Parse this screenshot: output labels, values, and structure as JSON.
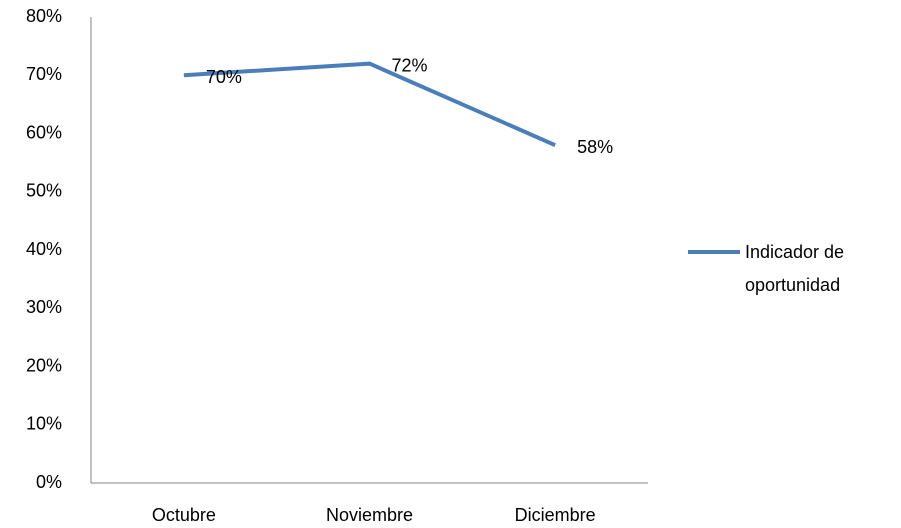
{
  "chart_data": {
    "type": "line",
    "categories": [
      "Octubre",
      "Noviembre",
      "Diciembre"
    ],
    "series": [
      {
        "name": "Indicador de oportunidad",
        "color": "#4a7ebb",
        "values": [
          70,
          72,
          58
        ],
        "value_labels": [
          "70%",
          "72%",
          "58%"
        ]
      }
    ],
    "ylim": [
      0,
      80
    ],
    "yticks": [
      {
        "value": 0,
        "label": "0%"
      },
      {
        "value": 10,
        "label": "10%"
      },
      {
        "value": 20,
        "label": "20%"
      },
      {
        "value": 30,
        "label": "30%"
      },
      {
        "value": 40,
        "label": "40%"
      },
      {
        "value": 50,
        "label": "50%"
      },
      {
        "value": 60,
        "label": "60%"
      },
      {
        "value": 70,
        "label": "70%"
      },
      {
        "value": 80,
        "label": "80%"
      }
    ],
    "grid": false,
    "legend": "right"
  }
}
